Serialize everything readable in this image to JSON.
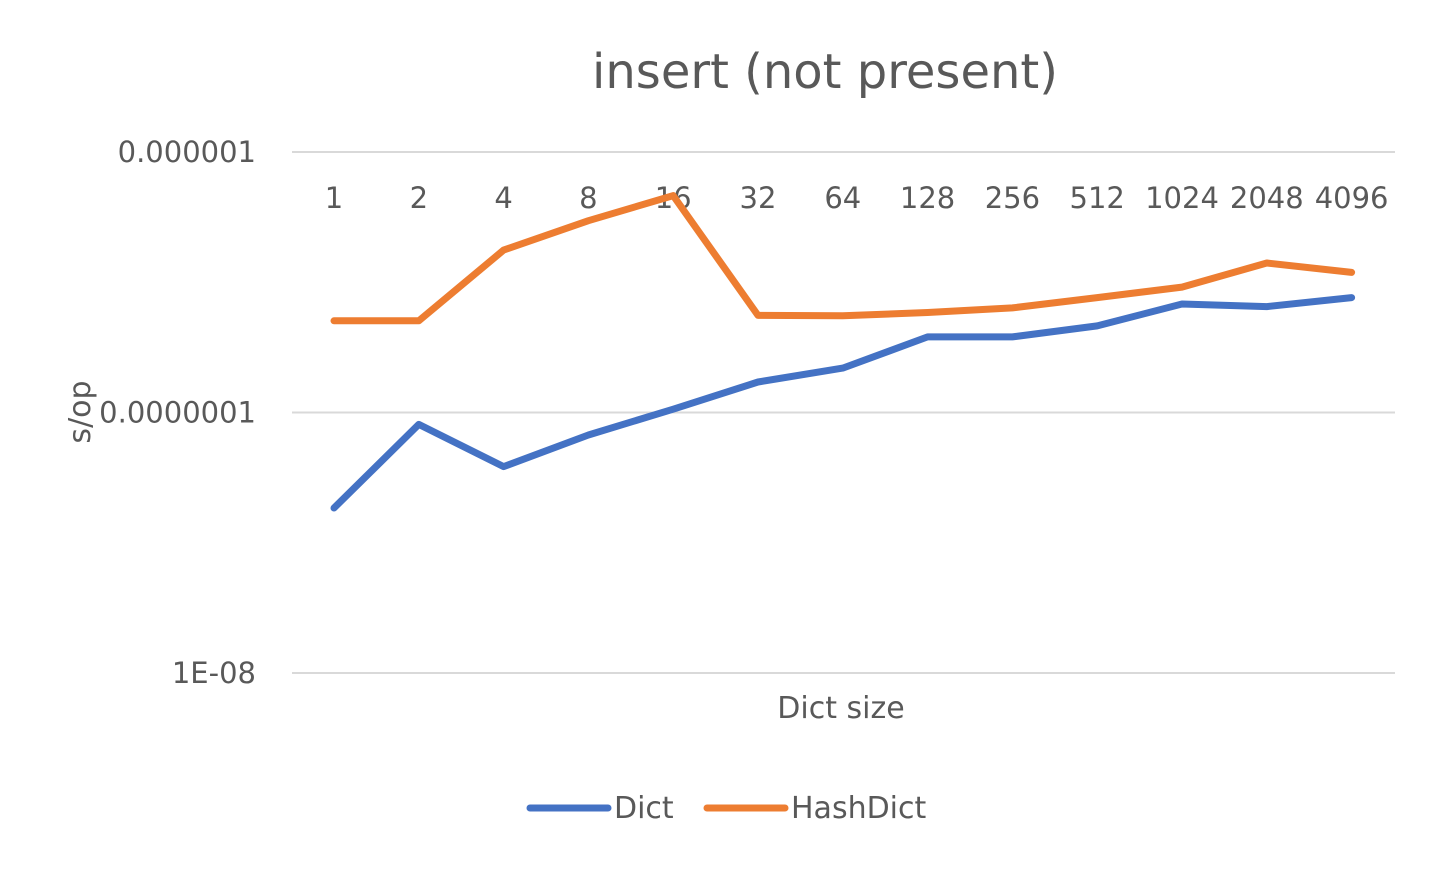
{
  "chart_data": {
    "type": "line",
    "title": "insert (not present)",
    "xlabel": "Dict size",
    "ylabel": "s/op",
    "y_scale": "log",
    "ylim": [
      1e-08,
      1e-06
    ],
    "y_ticks": [
      "0.000001",
      "0.0000001",
      "1E-08"
    ],
    "categories": [
      "1",
      "2",
      "4",
      "8",
      "16",
      "32",
      "64",
      "128",
      "256",
      "512",
      "1024",
      "2048",
      "4096"
    ],
    "series": [
      {
        "name": "Dict",
        "color": "#4472C4",
        "values": [
          4.3e-08,
          9e-08,
          6.2e-08,
          8.2e-08,
          1.03e-07,
          1.31e-07,
          1.48e-07,
          1.95e-07,
          1.95e-07,
          2.15e-07,
          2.61e-07,
          2.55e-07,
          2.76e-07
        ]
      },
      {
        "name": "HashDict",
        "color": "#ED7D31",
        "values": [
          2.25e-07,
          2.25e-07,
          4.2e-07,
          5.45e-07,
          6.8e-07,
          2.36e-07,
          2.35e-07,
          2.42e-07,
          2.52e-07,
          2.76e-07,
          3.03e-07,
          3.75e-07,
          3.45e-07
        ]
      }
    ],
    "grid": true,
    "legend_position": "bottom"
  }
}
